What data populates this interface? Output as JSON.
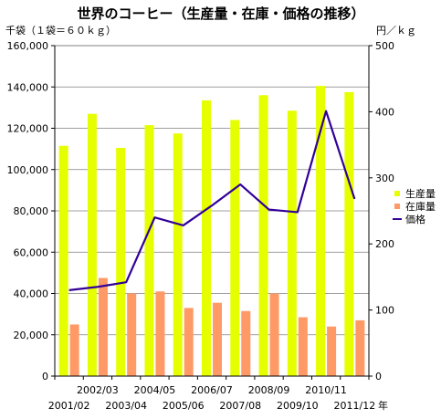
{
  "chart_data": {
    "type": "bar",
    "title": "世界のコーヒー（生産量・在庫・価格の推移）",
    "y_left_unit": "千袋（１袋＝６０ｋｇ）",
    "y_right_unit": "円／ｋｇ",
    "x_unit": "年",
    "categories": [
      "2001/02",
      "2002/03",
      "2003/04",
      "2004/05",
      "2005/06",
      "2006/07",
      "2007/08",
      "2008/09",
      "2009/10",
      "2010/11",
      "2011/12"
    ],
    "ylim_left": [
      0,
      160000
    ],
    "ylim_right": [
      0,
      500
    ],
    "left_ticks": [
      "0",
      "20,000",
      "40,000",
      "60,000",
      "80,000",
      "100,000",
      "120,000",
      "140,000",
      "160,000"
    ],
    "right_ticks": [
      "0",
      "100",
      "200",
      "300",
      "400",
      "500"
    ],
    "series": [
      {
        "name": "生産量",
        "axis": "left",
        "kind": "bar",
        "color": "#e6ff00",
        "values": [
          111500,
          127000,
          110500,
          121500,
          117500,
          133500,
          124000,
          136000,
          128500,
          140500,
          137500
        ]
      },
      {
        "name": "在庫量",
        "axis": "left",
        "kind": "bar",
        "color": "#ff9966",
        "values": [
          25000,
          47500,
          40000,
          41000,
          33000,
          35500,
          31500,
          40000,
          28500,
          24000,
          27000
        ]
      },
      {
        "name": "価格",
        "axis": "right",
        "kind": "line",
        "color": "#330099",
        "values": [
          130,
          135,
          142,
          240,
          228,
          258,
          290,
          252,
          248,
          401,
          268
        ]
      }
    ],
    "grid": true,
    "legend_position": "right"
  }
}
